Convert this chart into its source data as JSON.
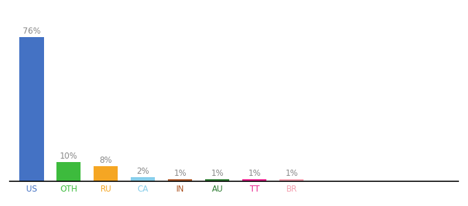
{
  "categories": [
    "US",
    "OTH",
    "RU",
    "CA",
    "IN",
    "AU",
    "TT",
    "BR"
  ],
  "values": [
    76,
    10,
    8,
    2,
    1,
    1,
    1,
    1
  ],
  "bar_colors": [
    "#4472c4",
    "#3dbb3d",
    "#f5a623",
    "#87ceeb",
    "#b05a2a",
    "#2e7d32",
    "#e91e8c",
    "#f4a0b0"
  ],
  "tick_colors": [
    "#4472c4",
    "#3dbb3d",
    "#f5a623",
    "#87ceeb",
    "#b05a2a",
    "#2e7d32",
    "#e91e8c",
    "#f4a0b0"
  ],
  "label_fontsize": 8.5,
  "tick_fontsize": 8.5,
  "label_color": "#888888",
  "background_color": "#ffffff",
  "bar_width": 0.65,
  "ylim": [
    0,
    88
  ],
  "figsize": [
    6.8,
    3.0
  ],
  "dpi": 100
}
